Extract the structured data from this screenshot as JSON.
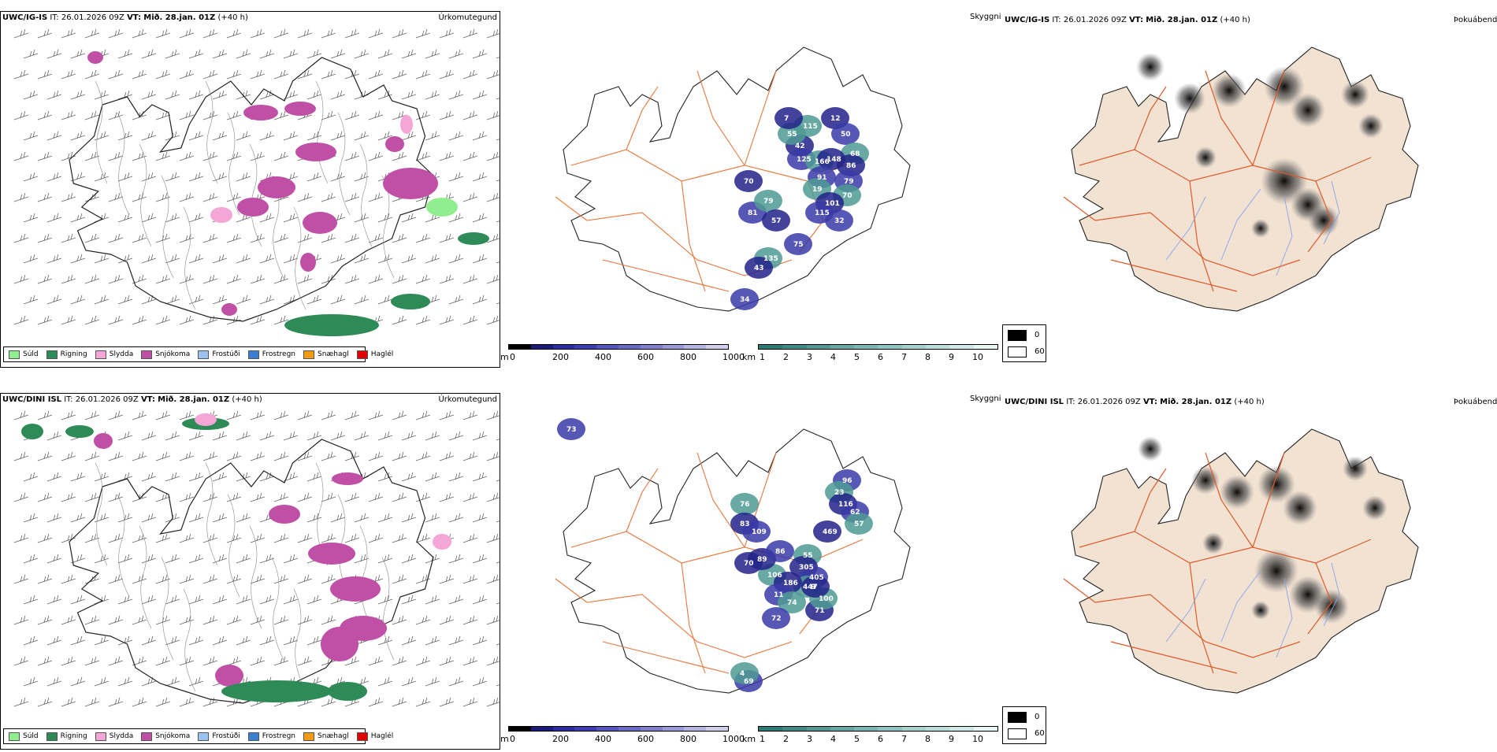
{
  "rows": [
    {
      "model": "UWC/IG-IS",
      "it_label": "IT:",
      "it_value": "26.01.2026 09Z",
      "vt_label": "VT:",
      "vt_value": "Mið. 28.jan. 01Z",
      "lead": "(+40 h)",
      "panel_titles": [
        "Úrkomutegund",
        "Skyggni",
        "Þokuábendi"
      ],
      "visibility_labels": [
        "70",
        "81",
        "79",
        "57",
        "75",
        "135",
        "43",
        "34",
        "115",
        "12",
        "50",
        "68",
        "86",
        "79",
        "70",
        "42",
        "125",
        "166",
        "148",
        "91",
        "19",
        "101",
        "115",
        "55",
        "7",
        "32"
      ]
    },
    {
      "model": "UWC/DINI ISL",
      "it_label": "IT:",
      "it_value": "26.01.2026 09Z",
      "vt_label": "VT:",
      "vt_value": "Mið. 28.jan. 01Z",
      "lead": "(+40 h)",
      "panel_titles": [
        "Úrkomutegund",
        "Skyggni",
        "Þokuábendi"
      ],
      "visibility_labels": [
        "70",
        "73",
        "76",
        "83",
        "109",
        "106",
        "89",
        "86",
        "55",
        "305",
        "405",
        "447",
        "186",
        "11",
        "74",
        "71",
        "72",
        "100",
        "9",
        "96",
        "23",
        "116",
        "62",
        "57",
        "469",
        "69",
        "4"
      ]
    }
  ],
  "precip_legend": [
    {
      "label": "Súld",
      "color": "#90ee90"
    },
    {
      "label": "Rigning",
      "color": "#2e8b57"
    },
    {
      "label": "Slydda",
      "color": "#f4a6d7"
    },
    {
      "label": "Snjókoma",
      "color": "#c04fa6"
    },
    {
      "label": "Frostúði",
      "color": "#9cc3f0"
    },
    {
      "label": "Frostregn",
      "color": "#3a7fd0"
    },
    {
      "label": "Snæhagl",
      "color": "#f39c12"
    },
    {
      "label": "Haglél",
      "color": "#e00000"
    }
  ],
  "visibility_scale": {
    "m_unit": "m",
    "m_ticks": [
      "0",
      "200",
      "400",
      "600",
      "800",
      "1000"
    ],
    "m_colors": [
      "#000000",
      "#1a1a7a",
      "#2c2c9e",
      "#3e3eb0",
      "#5555bb",
      "#6a6ac4",
      "#8080cc",
      "#9a9ad6",
      "#b5b5e0",
      "#d0d0ec"
    ],
    "km_unit": "km",
    "km_ticks": [
      "1",
      "2",
      "3",
      "4",
      "5",
      "6",
      "7",
      "8",
      "9",
      "10"
    ],
    "km_colors": [
      "#2b7a74",
      "#3f8a84",
      "#529994",
      "#67a8a3",
      "#7bb6b2",
      "#90c4c0",
      "#a5d1ce",
      "#bbdedb",
      "#d1eae8",
      "#e7f5f4"
    ]
  },
  "cloud_legend": [
    {
      "label": "0",
      "color": "#000000"
    },
    {
      "label": "60",
      "color": "#ffffff"
    }
  ],
  "colors": {
    "land_fog": "#f2e2d2",
    "roads": "#e8763a",
    "fog_roads": "#e05a2a",
    "rivers": "#8aa2f0",
    "coast": "#222222"
  }
}
